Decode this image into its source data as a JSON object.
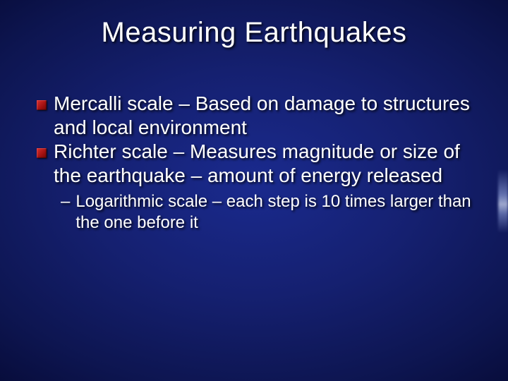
{
  "slide": {
    "title": "Measuring Earthquakes",
    "bullets": [
      {
        "text": "Mercalli scale – Based on damage to structures and local environment"
      },
      {
        "text": "Richter scale – Measures magnitude or size of the earthquake – amount of energy released"
      }
    ],
    "sub_bullets": [
      {
        "dash": "–",
        "text": "Logarithmic scale – each step is 10 times larger than the one before it"
      }
    ]
  },
  "style": {
    "background_gradient_inner": "#1a2a8e",
    "background_gradient_outer": "#020418",
    "bullet_color": "#c02020",
    "text_color": "#ffffff",
    "title_fontsize_pt": 40,
    "body_fontsize_pt": 28,
    "sub_fontsize_pt": 24,
    "font_family": "Arial",
    "shadow_color": "#000000"
  }
}
